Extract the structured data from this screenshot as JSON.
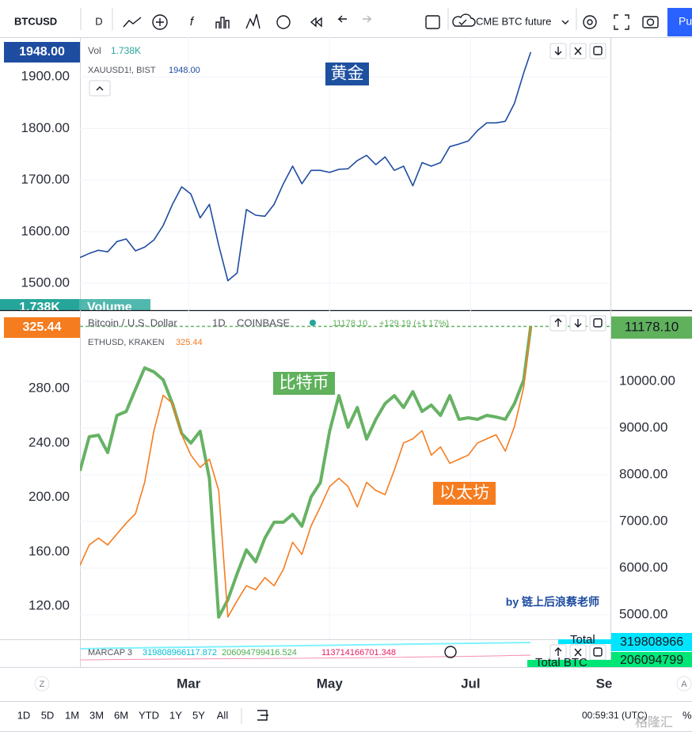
{
  "toolbar": {
    "symbol": "BTCUSD",
    "interval": "D",
    "compare": "CME BTC future",
    "publish": "Pu"
  },
  "chart_data": [
    {
      "type": "line",
      "legend": {
        "volume_label": "Vol",
        "volume_value": "1.738K",
        "last": "1948.00"
      },
      "annotation": "黄金",
      "price_tag": "1948.00",
      "volume_tag": "1.738K",
      "volume_tag_name": "Volume",
      "x": [
        13,
        17,
        21,
        25,
        29,
        33,
        37,
        41,
        45,
        49,
        53,
        57,
        61,
        65,
        69,
        73,
        77,
        81,
        85,
        89,
        93,
        97,
        101,
        105,
        109,
        113,
        117,
        121,
        125,
        129,
        133,
        137,
        141,
        145,
        149,
        153,
        157,
        161,
        165,
        169,
        173,
        177,
        181,
        185,
        189,
        193,
        197,
        201,
        205,
        208
      ],
      "xlim": [
        13,
        242.5
      ],
      "ylim": [
        1448,
        1977
      ],
      "yticks": [
        {
          "value": 1500,
          "label": "1500.00"
        },
        {
          "value": 1600,
          "label": "1600.00"
        },
        {
          "value": 1700,
          "label": "1700.00"
        },
        {
          "value": 1800,
          "label": "1800.00"
        },
        {
          "value": 1900,
          "label": "1900.00"
        }
      ],
      "grid": true,
      "series": [
        {
          "name": "XAUUSD1!, BIST",
          "color": "#1e4ca0",
          "values": [
            1550,
            1558,
            1564,
            1561,
            1581,
            1586,
            1563,
            1570,
            1584,
            1612,
            1653,
            1687,
            1673,
            1627,
            1653,
            1574,
            1505,
            1520,
            1643,
            1632,
            1630,
            1653,
            1693,
            1727,
            1693,
            1719,
            1719,
            1715,
            1721,
            1722,
            1738,
            1748,
            1730,
            1745,
            1719,
            1727,
            1689,
            1734,
            1727,
            1734,
            1765,
            1770,
            1776,
            1796,
            1811,
            1811,
            1814,
            1849,
            1908,
            1948
          ]
        }
      ]
    },
    {
      "type": "line",
      "legend": {
        "interval": "1D",
        "exchange": "COINBASE",
        "btc_last": "11178.10",
        "btc_change": "+129.19 (+1.17%)",
        "eth_last": "325.44"
      },
      "annotations": [
        "比特币",
        "以太坊",
        "by 链上后浪蔡老师"
      ],
      "price_tags": {
        "left": "325.44",
        "right": "11178.10"
      },
      "x": [
        13,
        17,
        21,
        25,
        29,
        33,
        37,
        41,
        45,
        49,
        53,
        57,
        61,
        65,
        69,
        73,
        77,
        81,
        85,
        89,
        93,
        97,
        101,
        105,
        109,
        113,
        117,
        121,
        125,
        129,
        133,
        137,
        141,
        145,
        149,
        153,
        157,
        161,
        165,
        169,
        173,
        177,
        181,
        185,
        189,
        193,
        197,
        201,
        205,
        208
      ],
      "xlim": [
        13,
        242.5
      ],
      "xticks": [
        {
          "value": 60,
          "label": "Mar"
        },
        {
          "value": 121,
          "label": "May"
        },
        {
          "value": 182,
          "label": "Jul"
        },
        {
          "value": 244,
          "label": "Se"
        }
      ],
      "ylim": [
        95.6,
        337.6
      ],
      "yticks": [
        {
          "value": 120,
          "label": "120.00"
        },
        {
          "value": 160,
          "label": "160.00"
        },
        {
          "value": 200,
          "label": "200.00"
        },
        {
          "value": 240,
          "label": "240.00"
        },
        {
          "value": 280,
          "label": "280.00"
        }
      ],
      "y2lim": [
        4475,
        11525
      ],
      "y2ticks": [
        {
          "value": 5000,
          "label": "5000.00"
        },
        {
          "value": 6000,
          "label": "6000.00"
        },
        {
          "value": 7000,
          "label": "7000.00"
        },
        {
          "value": 8000,
          "label": "8000.00"
        },
        {
          "value": 9000,
          "label": "9000.00"
        },
        {
          "value": 10000,
          "label": "10000.00"
        }
      ],
      "grid": true,
      "series": [
        {
          "name": "Bitcoin / U.S. Dollar",
          "color": "#66b264",
          "axis": "y2",
          "values": [
            8085,
            8814,
            8847,
            8475,
            9271,
            9356,
            9831,
            10288,
            10203,
            10034,
            9525,
            8881,
            8678,
            8932,
            7915,
            4949,
            5322,
            5881,
            6390,
            6136,
            6644,
            6983,
            6983,
            7153,
            6898,
            7525,
            7831,
            8932,
            9695,
            9017,
            9441,
            8763,
            9186,
            9525,
            9695,
            9441,
            9780,
            9356,
            9492,
            9271,
            9695,
            9186,
            9220,
            9186,
            9271,
            9237,
            9186,
            9525,
            10034,
            11178.1
          ]
        },
        {
          "name": "ETHUSD, KRAKEN",
          "color": "#f57c1f",
          "values": [
            150,
            165,
            170,
            165,
            173,
            181,
            188,
            211,
            249,
            275,
            269,
            246,
            231,
            222,
            228,
            205,
            112,
            124,
            135,
            132,
            141,
            135,
            147,
            167,
            158,
            179,
            193,
            208,
            214,
            208,
            193,
            211,
            205,
            202,
            220,
            240,
            243,
            249,
            231,
            237,
            225,
            228,
            231,
            240,
            243,
            246,
            234,
            252,
            281,
            325.44
          ]
        }
      ]
    }
  ],
  "marcap": {
    "name": "MARCAP 3",
    "values": [
      "319808966117.872",
      "206094799416.524",
      "113714166701.348"
    ],
    "tags": [
      "Total",
      "319808966",
      "Total BTC",
      "206094799"
    ]
  },
  "scale_buttons": [
    "Z",
    "A"
  ],
  "bottom_bar": {
    "ranges": [
      "1D",
      "5D",
      "1M",
      "3M",
      "6M",
      "YTD",
      "1Y",
      "5Y",
      "All"
    ],
    "clock": "00:59:31 (UTC)",
    "percent": "%"
  },
  "watermark": "格隆汇"
}
